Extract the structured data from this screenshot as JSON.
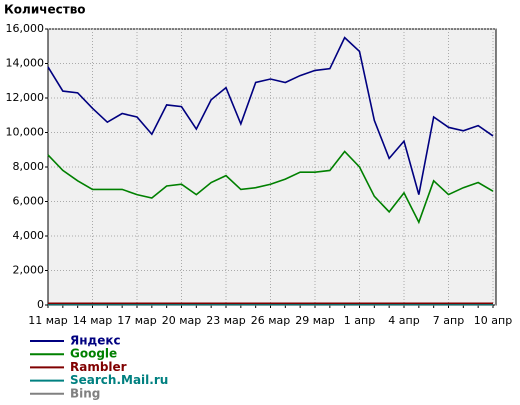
{
  "chart_data": {
    "type": "line",
    "title": "Количество",
    "categories": [
      "11 мар",
      null,
      null,
      "14 мар",
      null,
      null,
      "17 мар",
      null,
      null,
      "20 мар",
      null,
      null,
      "23 мар",
      null,
      null,
      "26 мар",
      null,
      null,
      "29 мар",
      null,
      null,
      "1 апр",
      null,
      null,
      "4 апр",
      null,
      null,
      "7 апр",
      null,
      null,
      "10 апр"
    ],
    "series": [
      {
        "name": "Яндекс",
        "color": "#000080",
        "values": [
          13800,
          12400,
          12300,
          11400,
          10600,
          11100,
          10900,
          9900,
          11600,
          11500,
          10200,
          11900,
          12600,
          10500,
          12900,
          13100,
          12900,
          13300,
          13600,
          13700,
          15500,
          14700,
          10700,
          8500,
          9500,
          6400,
          10900,
          10300,
          10100,
          10400,
          9800
        ]
      },
      {
        "name": "Google",
        "color": "#008000",
        "values": [
          8700,
          7800,
          7200,
          6700,
          6700,
          6700,
          6400,
          6200,
          6900,
          7000,
          6400,
          7100,
          7500,
          6700,
          6800,
          7000,
          7300,
          7700,
          7700,
          7800,
          8900,
          8000,
          6300,
          5400,
          6500,
          4800,
          7200,
          6400,
          6800,
          7100,
          6600
        ]
      },
      {
        "name": "Rambler",
        "color": "#800000",
        "values": [
          100,
          100,
          100,
          100,
          100,
          100,
          100,
          100,
          100,
          100,
          100,
          100,
          100,
          100,
          100,
          100,
          100,
          100,
          100,
          100,
          100,
          100,
          100,
          100,
          100,
          100,
          100,
          100,
          100,
          100,
          100
        ]
      },
      {
        "name": "Search.Mail.ru",
        "color": "#008080",
        "values": [
          30,
          30,
          30,
          30,
          30,
          30,
          30,
          30,
          30,
          30,
          30,
          30,
          30,
          30,
          30,
          30,
          30,
          30,
          30,
          30,
          30,
          30,
          30,
          30,
          30,
          30,
          30,
          30,
          30,
          30,
          30
        ]
      },
      {
        "name": "Bing",
        "color": "#808080",
        "values": [
          0,
          0,
          0,
          0,
          0,
          0,
          0,
          0,
          0,
          0,
          0,
          0,
          0,
          0,
          0,
          0,
          0,
          0,
          0,
          0,
          0,
          0,
          0,
          0,
          0,
          0,
          0,
          0,
          0,
          0,
          0
        ]
      }
    ],
    "ylim": [
      0,
      16000
    ],
    "yticks": [
      0,
      {
        "value": 2000,
        "label": "2,000"
      },
      {
        "value": 4000,
        "label": "4,000"
      },
      {
        "value": 6000,
        "label": "6,000"
      },
      {
        "value": 8000,
        "label": "8,000"
      },
      {
        "value": 10000,
        "label": "10,000"
      },
      {
        "value": 12000,
        "label": "12,000"
      },
      {
        "value": 14000,
        "label": "14,000"
      },
      {
        "value": 16000,
        "label": "16,000"
      }
    ],
    "grid": true
  }
}
